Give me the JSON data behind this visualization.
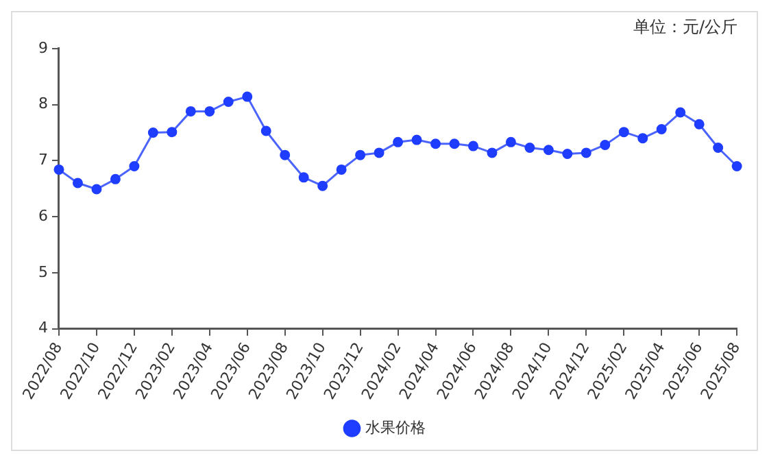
{
  "chart_data": {
    "type": "line",
    "annotations": [
      "单位：元/公斤"
    ],
    "categories": [
      "2022/08",
      null,
      "2022/10",
      null,
      "2022/12",
      null,
      "2023/02",
      null,
      "2023/04",
      null,
      "2023/06",
      null,
      "2023/08",
      null,
      "2023/10",
      null,
      "2023/12",
      null,
      "2024/02",
      null,
      "2024/04",
      null,
      "2024/06",
      null,
      "2024/08",
      null,
      "2024/10",
      null,
      "2024/12",
      null,
      "2025/02",
      null,
      "2025/04",
      null,
      "2025/06",
      null,
      "2025/08"
    ],
    "series": [
      {
        "name": "水果价格",
        "color": "#1f3dff",
        "values": [
          6.84,
          6.6,
          6.49,
          6.67,
          6.9,
          7.5,
          7.51,
          7.88,
          7.88,
          8.05,
          8.14,
          7.53,
          7.1,
          6.7,
          6.55,
          6.84,
          7.1,
          7.14,
          7.33,
          7.37,
          7.3,
          7.3,
          7.26,
          7.14,
          7.33,
          7.23,
          7.19,
          7.12,
          7.14,
          7.28,
          7.51,
          7.4,
          7.56,
          7.86,
          7.65,
          7.23,
          6.9
        ]
      }
    ],
    "ylim": [
      4,
      9
    ],
    "yticks": [
      4,
      5,
      6,
      7,
      8,
      9
    ],
    "grid": false,
    "legend": "bottom",
    "marker": "circle",
    "line_style": "solid"
  }
}
